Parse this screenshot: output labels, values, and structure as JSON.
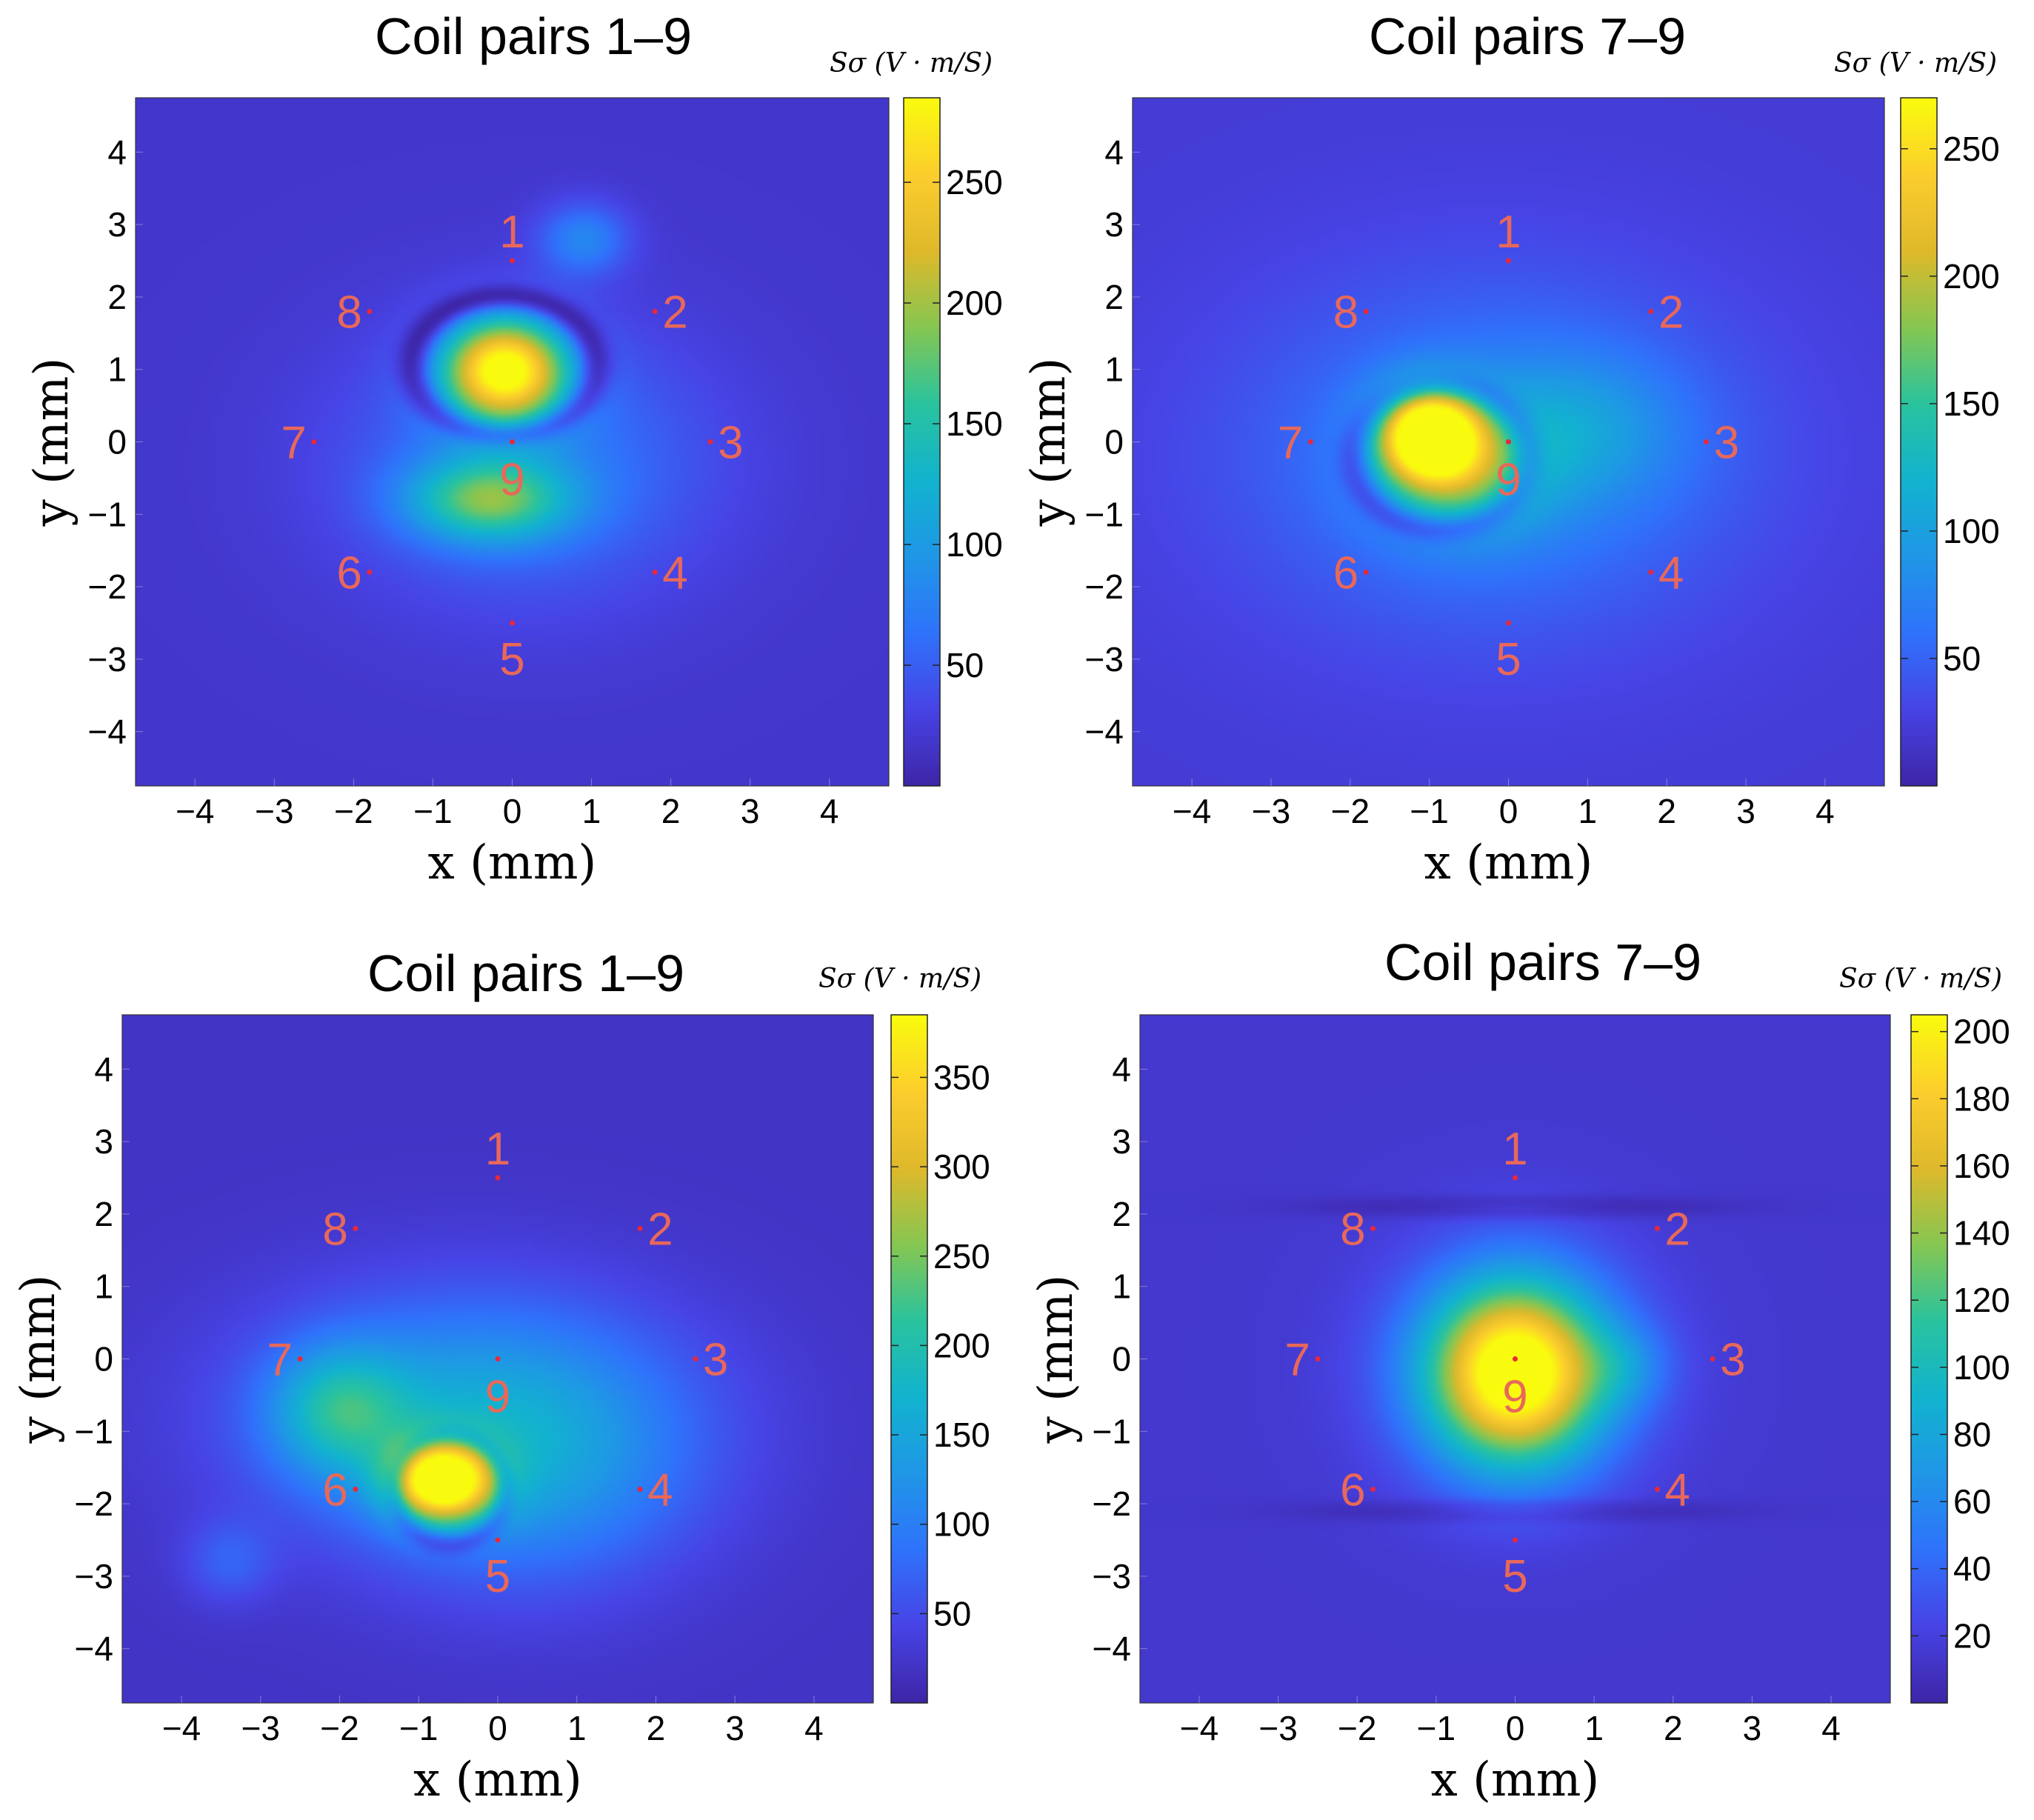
{
  "colors": {
    "parula": [
      "#3e26a8",
      "#4744e6",
      "#2f73fb",
      "#1f97e6",
      "#12b3cf",
      "#2ac39e",
      "#86c652",
      "#dfb92b",
      "#fccd2d",
      "#f9fb0e"
    ],
    "coil_label": "#e8685a",
    "coil_dot": "#e8283a"
  },
  "chart_data": [
    {
      "type": "heatmap",
      "title": "Coil pairs 1–9",
      "xlabel": "x (mm)",
      "ylabel": "y (mm)",
      "colorbar_label": "Sσ (V · m/S)",
      "xlim": [
        -4.75,
        4.75
      ],
      "ylim": [
        -4.75,
        4.75
      ],
      "xticks": [
        -4,
        -3,
        -2,
        -1,
        0,
        1,
        2,
        3,
        4
      ],
      "yticks": [
        -4,
        -3,
        -2,
        -1,
        0,
        1,
        2,
        3,
        4
      ],
      "clim": [
        0,
        285
      ],
      "cticks": [
        50,
        100,
        150,
        200,
        250
      ],
      "coils": [
        {
          "label": "1",
          "x": 0,
          "y": 2.5
        },
        {
          "label": "2",
          "x": 1.8,
          "y": 1.8
        },
        {
          "label": "3",
          "x": 2.5,
          "y": 0
        },
        {
          "label": "4",
          "x": 1.8,
          "y": -1.8
        },
        {
          "label": "5",
          "x": 0,
          "y": -2.5
        },
        {
          "label": "6",
          "x": -1.8,
          "y": -1.8
        },
        {
          "label": "7",
          "x": -2.5,
          "y": 0
        },
        {
          "label": "8",
          "x": -1.8,
          "y": 1.8
        },
        {
          "label": "9",
          "x": 0,
          "y": 0
        }
      ],
      "field": {
        "background": 18,
        "blobs": [
          {
            "x": -0.1,
            "y": 1.0,
            "sx": 0.55,
            "sy": 0.5,
            "a": 260
          },
          {
            "x": -0.3,
            "y": -0.8,
            "sx": 0.7,
            "sy": 0.4,
            "a": 130
          },
          {
            "x": 0.2,
            "y": -0.3,
            "sx": 1.6,
            "sy": 1.3,
            "a": 55
          },
          {
            "x": 0.9,
            "y": 2.8,
            "sx": 0.4,
            "sy": 0.35,
            "a": 60
          }
        ],
        "rings": [
          {
            "x": -0.1,
            "y": 1.05,
            "rx": 1.15,
            "ry": 0.95,
            "w": 0.12,
            "depth": 60
          }
        ]
      }
    },
    {
      "type": "heatmap",
      "title": "Coil pairs 7–9",
      "xlabel": "x (mm)",
      "ylabel": "y (mm)",
      "colorbar_label": "Sσ (V · m/S)",
      "xlim": [
        -4.75,
        4.75
      ],
      "ylim": [
        -4.75,
        4.75
      ],
      "xticks": [
        -4,
        -3,
        -2,
        -1,
        0,
        1,
        2,
        3,
        4
      ],
      "yticks": [
        -4,
        -3,
        -2,
        -1,
        0,
        1,
        2,
        3,
        4
      ],
      "clim": [
        0,
        270
      ],
      "cticks": [
        50,
        100,
        150,
        200,
        250
      ],
      "coils": [
        {
          "label": "1",
          "x": 0,
          "y": 2.5
        },
        {
          "label": "2",
          "x": 1.8,
          "y": 1.8
        },
        {
          "label": "3",
          "x": 2.5,
          "y": 0
        },
        {
          "label": "4",
          "x": 1.8,
          "y": -1.8
        },
        {
          "label": "5",
          "x": 0,
          "y": -2.5
        },
        {
          "label": "6",
          "x": -1.8,
          "y": -1.8
        },
        {
          "label": "7",
          "x": -2.5,
          "y": 0
        },
        {
          "label": "8",
          "x": -1.8,
          "y": 1.8
        },
        {
          "label": "9",
          "x": 0,
          "y": 0
        }
      ],
      "field": {
        "background": 22,
        "blobs": [
          {
            "x": -1.0,
            "y": 0.1,
            "sx": 0.45,
            "sy": 0.45,
            "a": 250
          },
          {
            "x": -0.6,
            "y": -0.4,
            "sx": 0.7,
            "sy": 0.6,
            "a": 90
          },
          {
            "x": -0.2,
            "y": -0.2,
            "sx": 2.2,
            "sy": 1.7,
            "a": 55
          },
          {
            "x": 0.9,
            "y": 0.2,
            "sx": 0.9,
            "sy": 0.7,
            "a": 40
          }
        ],
        "rings": [
          {
            "x": -0.85,
            "y": -0.2,
            "rx": 1.1,
            "ry": 1.0,
            "w": 0.14,
            "depth": 50
          }
        ]
      }
    },
    {
      "type": "heatmap",
      "title": "Coil pairs 1–9",
      "xlabel": "x (mm)",
      "ylabel": "y (mm)",
      "colorbar_label": "Sσ (V · m/S)",
      "xlim": [
        -4.75,
        4.75
      ],
      "ylim": [
        -4.75,
        4.75
      ],
      "xticks": [
        -4,
        -3,
        -2,
        -1,
        0,
        1,
        2,
        3,
        4
      ],
      "yticks": [
        -4,
        -3,
        -2,
        -1,
        0,
        1,
        2,
        3,
        4
      ],
      "clim": [
        0,
        385
      ],
      "cticks": [
        50,
        100,
        150,
        200,
        250,
        300,
        350
      ],
      "coils": [
        {
          "label": "1",
          "x": 0,
          "y": 2.5
        },
        {
          "label": "2",
          "x": 1.8,
          "y": 1.8
        },
        {
          "label": "3",
          "x": 2.5,
          "y": 0
        },
        {
          "label": "4",
          "x": 1.8,
          "y": -1.8
        },
        {
          "label": "5",
          "x": 0,
          "y": -2.5
        },
        {
          "label": "6",
          "x": -1.8,
          "y": -1.8
        },
        {
          "label": "7",
          "x": -2.5,
          "y": 0
        },
        {
          "label": "8",
          "x": -1.8,
          "y": 1.8
        },
        {
          "label": "9",
          "x": 0,
          "y": 0
        }
      ],
      "field": {
        "background": 20,
        "blobs": [
          {
            "x": -0.7,
            "y": -1.7,
            "sx": 0.45,
            "sy": 0.38,
            "a": 340
          },
          {
            "x": -2.0,
            "y": -0.7,
            "sx": 0.6,
            "sy": 0.6,
            "a": 120
          },
          {
            "x": -0.4,
            "y": -0.8,
            "sx": 1.9,
            "sy": 1.2,
            "a": 110
          },
          {
            "x": 0.5,
            "y": -1.6,
            "sx": 1.4,
            "sy": 1.2,
            "a": 60
          },
          {
            "x": -3.4,
            "y": -2.8,
            "sx": 0.4,
            "sy": 0.4,
            "a": 45
          }
        ],
        "rings": [
          {
            "x": -0.6,
            "y": -1.8,
            "rx": 0.7,
            "ry": 0.75,
            "w": 0.1,
            "depth": 60
          }
        ]
      }
    },
    {
      "type": "heatmap",
      "title": "Coil pairs 7–9",
      "xlabel": "x (mm)",
      "ylabel": "y (mm)",
      "colorbar_label": "Sσ (V · m/S)",
      "xlim": [
        -4.75,
        4.75
      ],
      "ylim": [
        -4.75,
        4.75
      ],
      "xticks": [
        -4,
        -3,
        -2,
        -1,
        0,
        1,
        2,
        3,
        4
      ],
      "yticks": [
        -4,
        -3,
        -2,
        -1,
        0,
        1,
        2,
        3,
        4
      ],
      "clim": [
        0,
        205
      ],
      "cticks": [
        20,
        40,
        60,
        80,
        100,
        120,
        140,
        160,
        180,
        200
      ],
      "coils": [
        {
          "label": "1",
          "x": 0,
          "y": 2.5
        },
        {
          "label": "2",
          "x": 1.8,
          "y": 1.8
        },
        {
          "label": "3",
          "x": 2.5,
          "y": 0
        },
        {
          "label": "4",
          "x": 1.8,
          "y": -1.8
        },
        {
          "label": "5",
          "x": 0,
          "y": -2.5
        },
        {
          "label": "6",
          "x": -1.8,
          "y": -1.8
        },
        {
          "label": "7",
          "x": -2.5,
          "y": 0
        },
        {
          "label": "8",
          "x": -1.8,
          "y": 1.8
        },
        {
          "label": "9",
          "x": 0,
          "y": 0
        }
      ],
      "field": {
        "background": 14,
        "blobs": [
          {
            "x": 0.0,
            "y": -0.2,
            "sx": 0.75,
            "sy": 0.85,
            "a": 185
          },
          {
            "x": 0.0,
            "y": -0.1,
            "sx": 1.15,
            "sy": 1.15,
            "a": 40
          },
          {
            "x": 1.4,
            "y": -0.1,
            "sx": 0.4,
            "sy": 0.4,
            "a": 25
          }
        ],
        "rings": [
          {
            "x": 0.0,
            "y": 2.1,
            "rx": 1.0,
            "ry": 0.06,
            "w": 0.08,
            "depth": 12
          },
          {
            "x": 0.0,
            "y": -2.1,
            "rx": 1.0,
            "ry": 0.06,
            "w": 0.08,
            "depth": 12
          }
        ]
      }
    }
  ]
}
